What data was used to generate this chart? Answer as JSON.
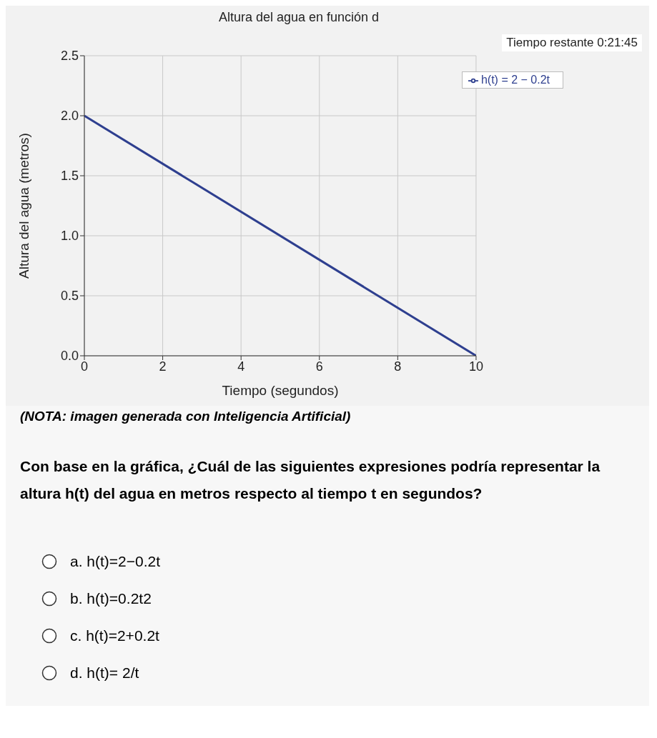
{
  "chart_data": {
    "type": "line",
    "title": "Altura del agua en función d",
    "xlabel": "Tiempo (segundos)",
    "ylabel": "Altura del agua (metros)",
    "x": [
      0,
      10
    ],
    "series": [
      {
        "name": "h(t) = 2 − 0.2t",
        "color": "#2e3f8f",
        "values": [
          2,
          0
        ]
      }
    ],
    "xlim": [
      0,
      10
    ],
    "xticks": [
      0,
      2,
      4,
      6,
      8,
      10
    ],
    "ylim": [
      0,
      2.5
    ],
    "yticks": [
      {
        "value": 0,
        "label": "0.0"
      },
      0.5,
      {
        "value": 1,
        "label": "1.0"
      },
      1.5,
      {
        "value": 2,
        "label": "2.0"
      },
      2.5
    ],
    "grid": true,
    "legend": "top right",
    "marker": "none",
    "line_style": "solid",
    "annotations": [
      "Tiempo restante 0:21:45",
      "(NOTA: imagen generada con Inteligencia Artificial)",
      "Con base en la gráfica, ¿Cuál de las siguientes expresiones podría representar la altura h(t) del agua en metros respecto al tiempo t en segundos?",
      "a. h(t)=2−0.2t",
      "b. h(t)=0.2t2",
      "c. h(t)=2+0.2t",
      "d. h(t)= 2/t"
    ]
  }
}
